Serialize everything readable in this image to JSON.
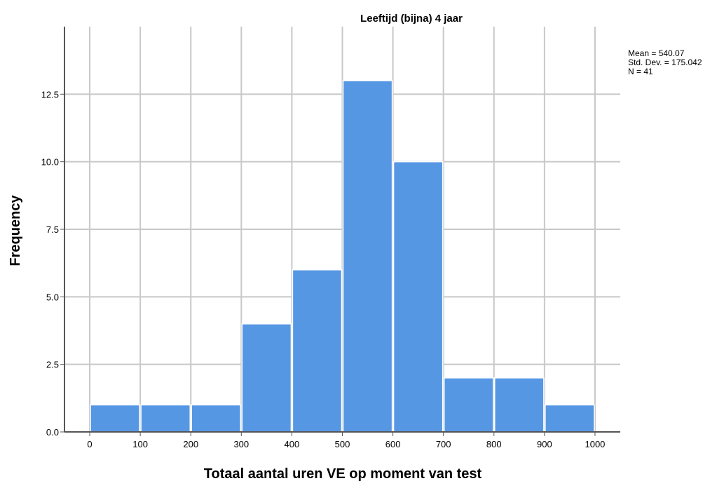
{
  "chart_data": {
    "type": "histogram",
    "title": "Leeftijd (bijna) 4 jaar",
    "xlabel": "Totaal aantal uren VE op moment van test",
    "ylabel": "Frequency",
    "xlim": [
      -50,
      1050
    ],
    "ylim": [
      0,
      15
    ],
    "x_ticks": [
      0,
      100,
      200,
      300,
      400,
      500,
      600,
      700,
      800,
      900,
      1000
    ],
    "x_tick_labels": [
      "0",
      "100",
      "200",
      "300",
      "400",
      "500",
      "600",
      "700",
      "800",
      "900",
      "1000"
    ],
    "y_ticks": [
      0,
      2.5,
      5,
      7.5,
      10,
      12.5
    ],
    "y_tick_labels": [
      "0.0",
      "2.5",
      "5.0",
      "7.5",
      "10.0",
      "12.5"
    ],
    "grid": true,
    "bar_color": "#5697e4",
    "bins": [
      {
        "x0": 0,
        "x1": 100,
        "count": 1
      },
      {
        "x0": 100,
        "x1": 200,
        "count": 1
      },
      {
        "x0": 200,
        "x1": 300,
        "count": 1
      },
      {
        "x0": 300,
        "x1": 400,
        "count": 4
      },
      {
        "x0": 400,
        "x1": 500,
        "count": 6
      },
      {
        "x0": 500,
        "x1": 600,
        "count": 13
      },
      {
        "x0": 600,
        "x1": 700,
        "count": 10
      },
      {
        "x0": 700,
        "x1": 800,
        "count": 2
      },
      {
        "x0": 800,
        "x1": 900,
        "count": 2
      },
      {
        "x0": 900,
        "x1": 1000,
        "count": 1
      }
    ],
    "stats": {
      "mean": "Mean = 540.07",
      "std_dev": "Std. Dev. = 175.042",
      "n": "N = 41"
    }
  }
}
